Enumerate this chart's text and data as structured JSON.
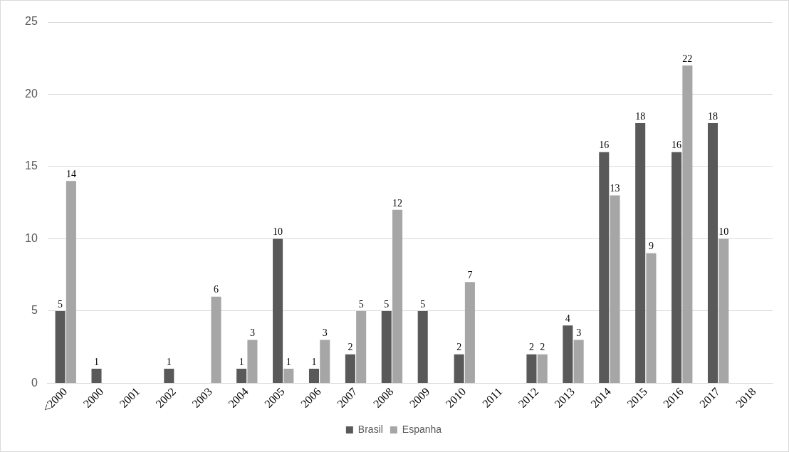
{
  "chart_data": {
    "type": "bar",
    "categories": [
      "<2000",
      "2000",
      "2001",
      "2002",
      "2003",
      "2004",
      "2005",
      "2006",
      "2007",
      "2008",
      "2009",
      "2010",
      "2011",
      "2012",
      "2013",
      "2014",
      "2015",
      "2016",
      "2017",
      "2018"
    ],
    "series": [
      {
        "name": "Brasil",
        "color": "#595959",
        "values": [
          5,
          1,
          null,
          1,
          null,
          1,
          10,
          1,
          2,
          5,
          5,
          2,
          null,
          2,
          4,
          16,
          18,
          16,
          18,
          null
        ]
      },
      {
        "name": "Espanha",
        "color": "#a6a6a6",
        "values": [
          14,
          null,
          null,
          null,
          6,
          3,
          1,
          3,
          5,
          12,
          null,
          7,
          null,
          2,
          3,
          13,
          9,
          22,
          10,
          null
        ]
      }
    ],
    "ylim": [
      0,
      25
    ],
    "yticks": [
      0,
      5,
      10,
      15,
      20,
      25
    ],
    "grid": "y",
    "legend": "bottom",
    "data_labels": true
  }
}
